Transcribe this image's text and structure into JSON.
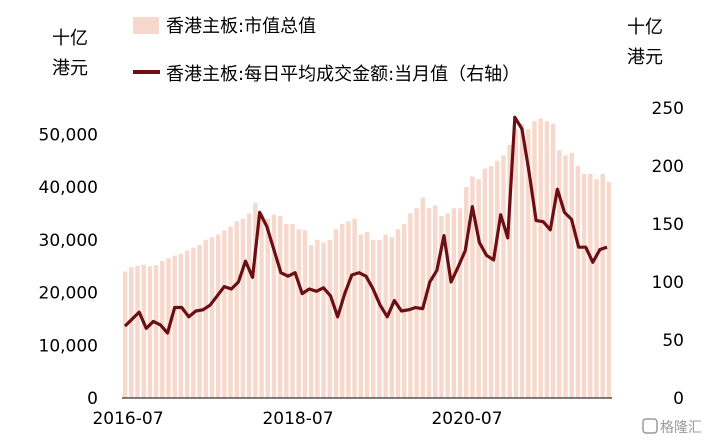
{
  "chart_data": {
    "type": "bar+line",
    "left_unit": [
      "十亿",
      "港元"
    ],
    "right_unit": [
      "十亿",
      "港元"
    ],
    "legend": {
      "bar_label": "香港主板:市值总值",
      "line_label": "香港主板:每日平均成交金额:当月值（右轴）"
    },
    "x_tick_labels": [
      "2016-07",
      "2018-07",
      "2020-07"
    ],
    "y_left": {
      "min": 0,
      "max": 55000,
      "ticks": [
        "0",
        "10,000",
        "20,000",
        "30,000",
        "40,000",
        "50,000"
      ]
    },
    "y_right": {
      "min": 0,
      "max": 250,
      "ticks": [
        "0",
        "50",
        "100",
        "150",
        "200",
        "250"
      ]
    },
    "watermark": "格隆汇",
    "colors": {
      "bar": "#f6d9cc",
      "line": "#6b0f14"
    },
    "bar_values": [
      24000,
      24800,
      25100,
      25300,
      25000,
      25200,
      26000,
      26500,
      27000,
      27300,
      28000,
      28500,
      29000,
      30000,
      30500,
      31000,
      31800,
      32500,
      33500,
      34000,
      35000,
      37000,
      35000,
      34000,
      34800,
      34500,
      33000,
      33000,
      32000,
      31800,
      29000,
      30000,
      29500,
      30000,
      32000,
      33000,
      33500,
      34000,
      31000,
      31500,
      30000,
      30000,
      31000,
      30500,
      32000,
      33000,
      35000,
      36000,
      38000,
      36000,
      36500,
      34500,
      35000,
      36000,
      36000,
      40000,
      42000,
      41500,
      43500,
      44000,
      45000,
      46000,
      48000,
      51000,
      52000,
      51000,
      52500,
      53000,
      52500,
      52000,
      47000,
      46000,
      46500,
      44000,
      42500,
      42500,
      41500,
      42500,
      41000
    ],
    "line_values": [
      62,
      68,
      74,
      60,
      66,
      63,
      56,
      78,
      78,
      70,
      75,
      76,
      80,
      88,
      96,
      94,
      100,
      118,
      104,
      160,
      148,
      128,
      108,
      105,
      108,
      90,
      94,
      92,
      95,
      88,
      70,
      90,
      106,
      108,
      105,
      94,
      80,
      70,
      84,
      75,
      76,
      78,
      77,
      100,
      110,
      140,
      100,
      113,
      127,
      165,
      134,
      123,
      119,
      158,
      138,
      242,
      232,
      195,
      153,
      152,
      145,
      180,
      160,
      154,
      130,
      130,
      117,
      128,
      130
    ]
  }
}
